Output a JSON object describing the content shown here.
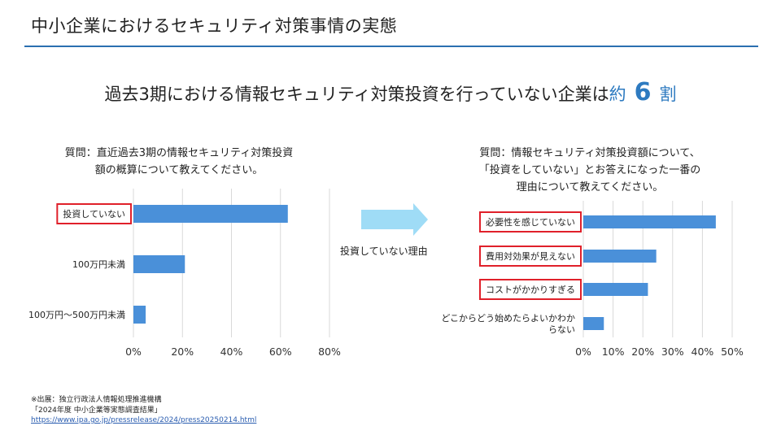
{
  "page": {
    "title": "中小企業におけるセキュリティ対策事情の実態",
    "headline_main": "過去3期における情報セキュリティ対策投資を行っていない企業は",
    "headline_approx": "約",
    "headline_number": "6",
    "headline_unit": "割"
  },
  "connector": {
    "label": "投資していない理由",
    "arrow_color": "#9fdcf6"
  },
  "source": {
    "line1": "※出展：独立行政法人情報処理推進機構",
    "line2": "「2024年度 中小企業等実態調査結果」",
    "url": "https://www.ipa.go.jp/pressrelease/2024/press20250214.html"
  },
  "colors": {
    "bar": "#4a90d9",
    "grid": "#d9d9d9",
    "highlight": "#e0202a",
    "accent": "#2d7ac0"
  },
  "chart_data": [
    {
      "type": "bar",
      "orientation": "horizontal",
      "question_lines": [
        "質問：直近過去3期の情報セキュリティ対策投資",
        "額の概算について教えてください。"
      ],
      "categories": [
        "投資していない",
        "100万円未満",
        "100万円～500万円未満"
      ],
      "values": [
        63,
        21,
        5
      ],
      "highlighted": [
        true,
        false,
        false
      ],
      "xlim": [
        0,
        80
      ],
      "ticks": [
        0,
        20,
        40,
        60,
        80
      ],
      "tick_labels": [
        "0%",
        "20%",
        "40%",
        "60%",
        "80%"
      ],
      "grid": true
    },
    {
      "type": "bar",
      "orientation": "horizontal",
      "question_lines": [
        "質問：情報セキュリティ対策投資額について、",
        "「投資をしていない」とお答えになった一番の",
        "理由について教えてください。"
      ],
      "categories": [
        "必要性を感じていない",
        "費用対効果が見えない",
        "コストがかかりすぎる",
        "どこからどう始めたらよいかわか|らない"
      ],
      "values": [
        44.5,
        24.5,
        21.7,
        6.9
      ],
      "highlighted": [
        true,
        true,
        true,
        false
      ],
      "xlim": [
        0,
        50
      ],
      "ticks": [
        0,
        10,
        20,
        30,
        40,
        50
      ],
      "tick_labels": [
        "0%",
        "10%",
        "20%",
        "30%",
        "40%",
        "50%"
      ],
      "grid": true
    }
  ]
}
